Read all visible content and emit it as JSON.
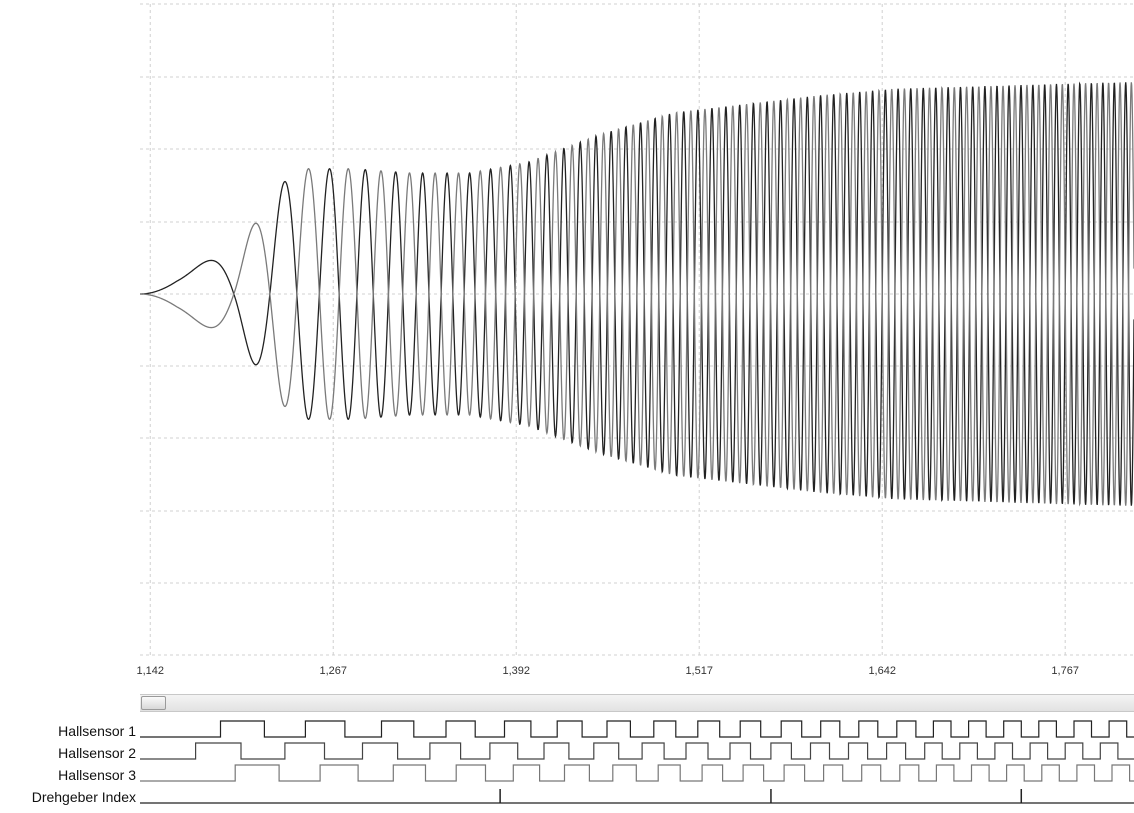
{
  "chart_data": [
    {
      "type": "line",
      "title": "",
      "xlabel": "",
      "ylabel": "",
      "x_ticks": [
        "1,142",
        "1,267",
        "1,392",
        "1,517",
        "1,642",
        "1,767"
      ],
      "xlim": [
        1.135,
        1.814
      ],
      "ylim": [
        -1.0,
        1.0
      ],
      "grid": true,
      "series": [
        {
          "color": "#222222",
          "description": "phase A sinusoid, amplitude ramping up",
          "x": [
            1.135,
            1.16,
            1.2,
            1.24,
            1.28,
            1.32,
            1.36,
            1.4,
            1.45,
            1.5,
            1.55,
            1.6,
            1.65,
            1.7,
            1.75,
            1.8,
            1.814
          ],
          "amplitude": [
            0.0,
            0.1,
            0.2,
            0.58,
            0.58,
            0.56,
            0.56,
            0.61,
            0.74,
            0.84,
            0.88,
            0.92,
            0.95,
            0.96,
            0.97,
            0.98,
            0.98
          ]
        },
        {
          "color": "#7a7a7a",
          "description": "phase B sinusoid, inverted to phase A",
          "x": [
            1.135,
            1.16,
            1.2,
            1.24,
            1.28,
            1.32,
            1.36,
            1.4,
            1.45,
            1.5,
            1.55,
            1.6,
            1.65,
            1.7,
            1.75,
            1.8,
            1.814
          ],
          "amplitude": [
            0.0,
            0.1,
            0.2,
            0.58,
            0.58,
            0.56,
            0.56,
            0.61,
            0.74,
            0.84,
            0.88,
            0.92,
            0.95,
            0.96,
            0.97,
            0.98,
            0.98
          ]
        }
      ]
    },
    {
      "type": "digital",
      "channels": [
        {
          "name": "Hallsensor 1",
          "color": "#222222",
          "edges": [
            1.19,
            1.22,
            1.248,
            1.275,
            1.3,
            1.322,
            1.344,
            1.364,
            1.384,
            1.402,
            1.42,
            1.437,
            1.454,
            1.47,
            1.486,
            1.501,
            1.516,
            1.531,
            1.545,
            1.559,
            1.573,
            1.587,
            1.6,
            1.613,
            1.626,
            1.639,
            1.652,
            1.665,
            1.677,
            1.689,
            1.701,
            1.713,
            1.725,
            1.737,
            1.749,
            1.761,
            1.773,
            1.785,
            1.797,
            1.809
          ]
        },
        {
          "name": "Hallsensor 2",
          "color": "#444444",
          "edges": [
            1.173,
            1.204,
            1.234,
            1.261,
            1.287,
            1.311,
            1.333,
            1.354,
            1.374,
            1.393,
            1.411,
            1.428,
            1.445,
            1.462,
            1.478,
            1.493,
            1.508,
            1.523,
            1.538,
            1.552,
            1.566,
            1.58,
            1.593,
            1.606,
            1.619,
            1.632,
            1.645,
            1.658,
            1.671,
            1.683,
            1.695,
            1.707,
            1.719,
            1.731,
            1.743,
            1.755,
            1.767,
            1.779,
            1.791,
            1.803
          ]
        },
        {
          "name": "Hallsensor 3",
          "color": "#777777",
          "edges": [
            1.2,
            1.23,
            1.258,
            1.284,
            1.308,
            1.33,
            1.351,
            1.371,
            1.39,
            1.408,
            1.425,
            1.442,
            1.458,
            1.474,
            1.489,
            1.504,
            1.519,
            1.533,
            1.547,
            1.561,
            1.575,
            1.589,
            1.602,
            1.615,
            1.628,
            1.641,
            1.654,
            1.667,
            1.679,
            1.691,
            1.703,
            1.715,
            1.727,
            1.739,
            1.751,
            1.763,
            1.775,
            1.787,
            1.799,
            1.811
          ]
        },
        {
          "name": "Drehgeber Index",
          "color": "#222222",
          "pulses": [
            1.381,
            1.566,
            1.737
          ]
        }
      ]
    }
  ]
}
